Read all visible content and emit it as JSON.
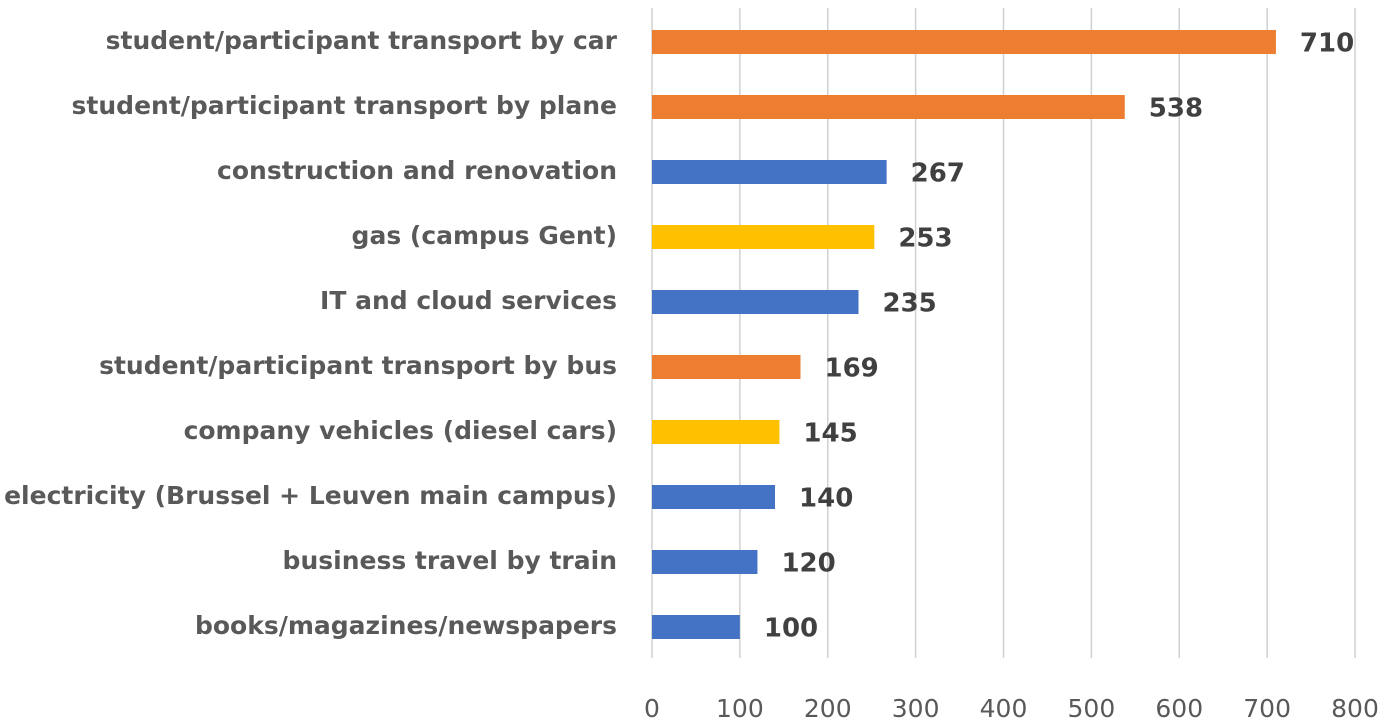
{
  "chart_data": {
    "type": "barh",
    "categories": [
      "student/participant transport by car",
      "student/participant transport by plane",
      "construction and renovation",
      "gas (campus Gent)",
      "IT and cloud services",
      "student/participant transport by bus",
      "company vehicles (diesel cars)",
      "electricity (Brussel + Leuven main campus)",
      "business travel by train",
      "books/magazines/newspapers"
    ],
    "values": [
      710,
      538,
      267,
      253,
      235,
      169,
      145,
      140,
      120,
      100
    ],
    "colors": [
      "#ED7D31",
      "#ED7D31",
      "#4472C4",
      "#FFC000",
      "#4472C4",
      "#ED7D31",
      "#FFC000",
      "#4472C4",
      "#4472C4",
      "#4472C4"
    ],
    "xlim": [
      0,
      800
    ],
    "xticks": [
      0,
      100,
      200,
      300,
      400,
      500,
      600,
      700,
      800
    ],
    "grid": true
  }
}
